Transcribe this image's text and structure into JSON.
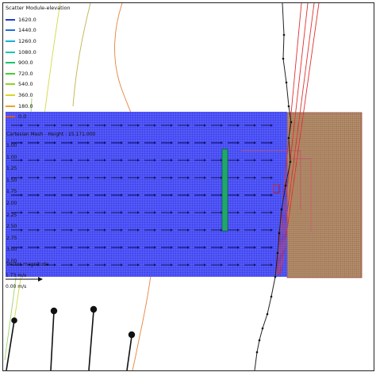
{
  "legend": {
    "title": "Scatter Module-elevation",
    "items": [
      {
        "label": "1620.0",
        "color": "#1a3fcf"
      },
      {
        "label": "1440.0",
        "color": "#1e6fe0"
      },
      {
        "label": "1260.0",
        "color": "#12b3d6"
      },
      {
        "label": "1080.0",
        "color": "#17c9b0"
      },
      {
        "label": "900.0",
        "color": "#18c46a"
      },
      {
        "label": "720.0",
        "color": "#3fd12e"
      },
      {
        "label": "540.0",
        "color": "#8ad62a"
      },
      {
        "label": "360.0",
        "color": "#d9d62c"
      },
      {
        "label": "180.0",
        "color": "#e8a32c"
      },
      {
        "label": "0.0",
        "color": "#e25a22"
      }
    ]
  },
  "grid_label": "Cartesian Mesh - Height :   15.171.000",
  "side_ticks": [
    "1.00",
    "1.00",
    "1.25",
    "1.50",
    "1.75",
    "2.00",
    "2.25",
    "2.50",
    "2.75",
    "3.00",
    "2.00"
  ],
  "vector_label": "Vector magnitude",
  "vector_ref_top": "1.73 m/s",
  "vector_ref_bottom": "0.00 m/s",
  "colors": {
    "mesh_fill": "#3a3ff0",
    "mesh_line": "#9fa6ff",
    "soil_fill": "#b89270",
    "soil_line": "#7a5030",
    "arrow": "#101060",
    "shore": "#222222",
    "red_line": "#e03030",
    "green_bar": "#1fa86a"
  }
}
